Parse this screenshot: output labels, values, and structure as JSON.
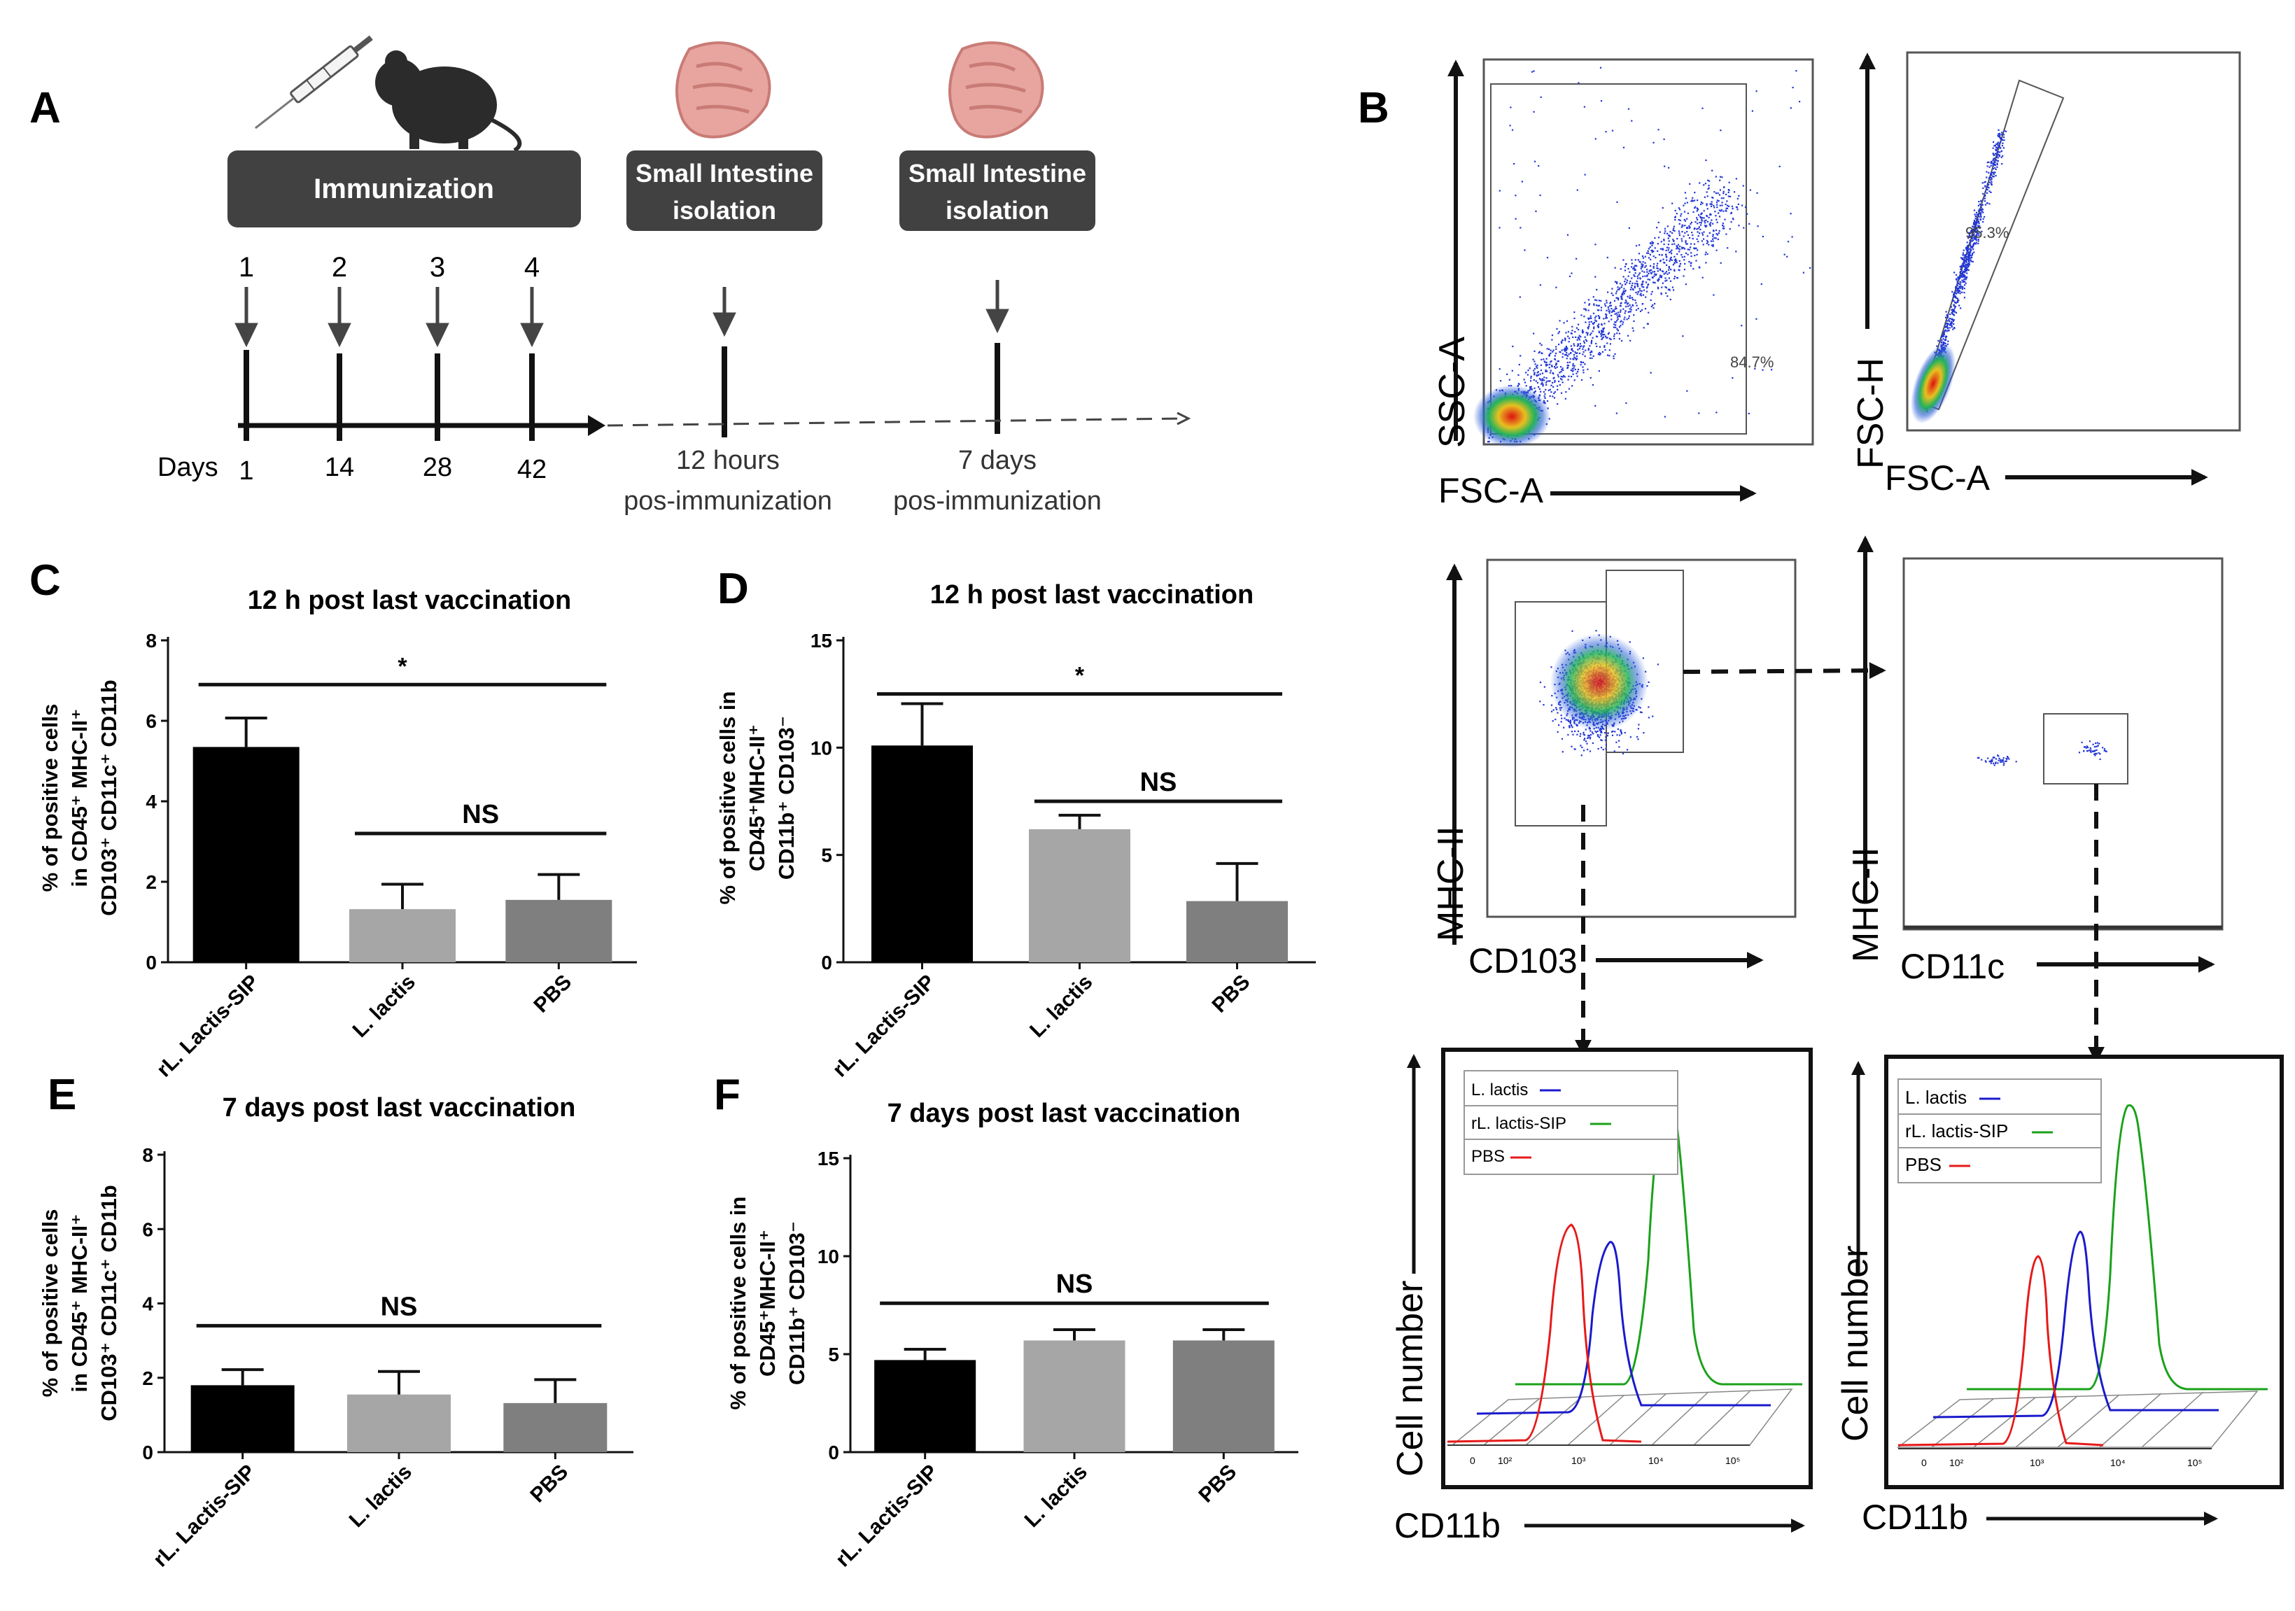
{
  "panel_letters": {
    "A": "A",
    "B": "B",
    "C": "C",
    "D": "D",
    "E": "E",
    "F": "F"
  },
  "timeline": {
    "immunization_label": "Immunization",
    "isolation_1": [
      "Small Intestine",
      "isolation"
    ],
    "isolation_2": [
      "Small Intestine",
      "isolation"
    ],
    "days_label": "Days",
    "day_numbers": [
      "1",
      "2",
      "3",
      "4"
    ],
    "day_values": [
      "1",
      "14",
      "28",
      "42"
    ],
    "point_12h": [
      "12 hours",
      "pos-immunization"
    ],
    "point_7d": [
      "7 days",
      "pos-immunization"
    ]
  },
  "flow": {
    "ssc_a": "SSC-A",
    "fsc_a_1": "FSC-A",
    "fsc_h": "FSC-H",
    "fsc_a_2": "FSC-A",
    "gate1_pct": "84.7%",
    "gate2_pct": "95.3%",
    "mhc_ii_1": "MHC-II",
    "cd103": "CD103",
    "mhc_ii_2": "MHC-II",
    "cd11c": "CD11c",
    "cell_number_1": "Cell number",
    "cell_number_2": "Cell number",
    "cd11b_1": "CD11b",
    "cd11b_2": "CD11b",
    "histogram_ticks": [
      "0",
      "10²",
      "10³",
      "10⁴",
      "10⁵"
    ],
    "legend": [
      {
        "label": "L. lactis",
        "color": "#1a1acc"
      },
      {
        "label": "rL. lactis-SIP",
        "color": "#1aa11a"
      },
      {
        "label": "PBS",
        "color": "#e61a1a"
      }
    ]
  },
  "chart_data": [
    {
      "panel": "C",
      "type": "bar",
      "title": "12 h post last vaccination",
      "ylabel": [
        "% of positive cells",
        "in CD45⁺ MHC-II⁺",
        "CD103⁺ CD11c⁺ CD11b"
      ],
      "categories": [
        "rL. Lactis-SIP",
        "L. lactis",
        "PBS"
      ],
      "values": [
        5.35,
        1.32,
        1.55
      ],
      "errors": [
        0.72,
        0.62,
        0.63
      ],
      "colors": [
        "#000000",
        "#a6a6a6",
        "#7f7f7f"
      ],
      "ylim": [
        0,
        8
      ],
      "yticks": [
        "0",
        "2",
        "4",
        "6",
        "8"
      ],
      "annotations": [
        {
          "label": "*",
          "from": 0,
          "to": 2,
          "level": 6.9
        },
        {
          "label": "NS",
          "from": 1,
          "to": 2,
          "level": 3.2
        }
      ]
    },
    {
      "panel": "D",
      "type": "bar",
      "title": "12 h post last vaccination",
      "ylabel": [
        "% of positive cells in",
        "CD45⁺MHC-II⁺",
        "CD11b⁺ CD103⁻"
      ],
      "categories": [
        "rL. Lactis-SIP",
        "L. lactis",
        "PBS"
      ],
      "values": [
        10.1,
        6.2,
        2.85
      ],
      "errors": [
        1.95,
        0.65,
        1.75
      ],
      "colors": [
        "#000000",
        "#a6a6a6",
        "#7f7f7f"
      ],
      "ylim": [
        0,
        15
      ],
      "yticks": [
        "0",
        "5",
        "10",
        "15"
      ],
      "annotations": [
        {
          "label": "*",
          "from": 0,
          "to": 2,
          "level": 12.5
        },
        {
          "label": "NS",
          "from": 1,
          "to": 2,
          "level": 7.5
        }
      ]
    },
    {
      "panel": "E",
      "type": "bar",
      "title": "7 days post last vaccination",
      "ylabel": [
        "% of positive cells",
        "in CD45⁺ MHC-II⁺",
        "CD103⁺ CD11c⁺ CD11b"
      ],
      "categories": [
        "rL. Lactis-SIP",
        "L. lactis",
        "PBS"
      ],
      "values": [
        1.8,
        1.55,
        1.32
      ],
      "errors": [
        0.42,
        0.62,
        0.63
      ],
      "colors": [
        "#000000",
        "#a6a6a6",
        "#7f7f7f"
      ],
      "ylim": [
        0,
        8
      ],
      "yticks": [
        "0",
        "2",
        "4",
        "6",
        "8"
      ],
      "annotations": [
        {
          "label": "NS",
          "from": 0,
          "to": 2,
          "level": 3.4
        }
      ]
    },
    {
      "panel": "F",
      "type": "bar",
      "title": "7 days post last vaccination",
      "ylabel": [
        "% of positive cells in",
        "CD45⁺MHC-II⁺",
        "CD11b⁺ CD103⁻"
      ],
      "categories": [
        "rL. Lactis-SIP",
        "L. lactis",
        "PBS"
      ],
      "values": [
        4.7,
        5.7,
        5.7
      ],
      "errors": [
        0.55,
        0.55,
        0.55
      ],
      "colors": [
        "#000000",
        "#a6a6a6",
        "#7f7f7f"
      ],
      "ylim": [
        0,
        15
      ],
      "yticks": [
        "0",
        "5",
        "10",
        "15"
      ],
      "annotations": [
        {
          "label": "NS",
          "from": 0,
          "to": 2,
          "level": 7.6
        }
      ]
    }
  ]
}
